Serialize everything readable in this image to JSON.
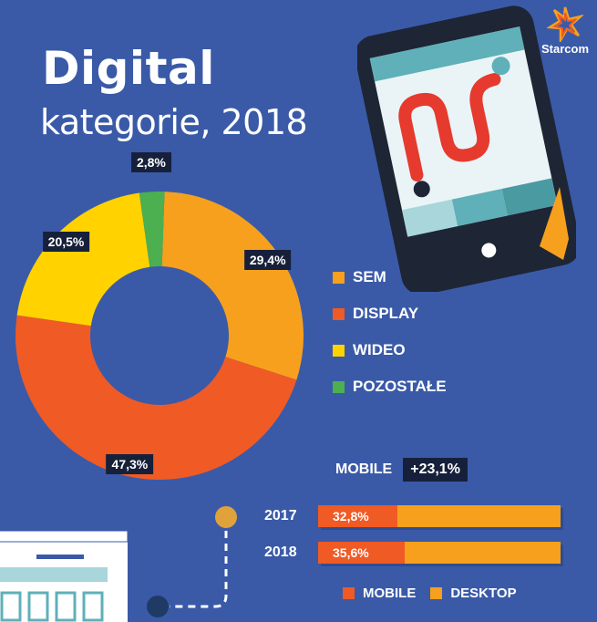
{
  "header": {
    "title": "Digital",
    "subtitle": "kategorie, 2018"
  },
  "brand": {
    "name": "Starcom"
  },
  "colors": {
    "sem": "#f7a01e",
    "display": "#f05a24",
    "wideo": "#ffd200",
    "pozostale": "#4caf50",
    "background": "#3a5aa8",
    "label_bg": "#17203a"
  },
  "chart_data": [
    {
      "type": "pie",
      "variant": "donut",
      "categories": [
        "SEM",
        "DISPLAY",
        "WIDEO",
        "POZOSTAŁE"
      ],
      "values": [
        29.4,
        47.3,
        20.5,
        2.8
      ],
      "data_labels": [
        "29,4%",
        "47,3%",
        "20,5%",
        "2,8%"
      ],
      "legend": "right"
    },
    {
      "type": "bar",
      "orientation": "horizontal",
      "stacked": true,
      "categories": [
        "2017",
        "2018"
      ],
      "series": [
        {
          "name": "MOBILE",
          "values": [
            32.8,
            35.6
          ],
          "labels": [
            "32,8%",
            "35,6%"
          ]
        },
        {
          "name": "DESKTOP",
          "values": [
            67.2,
            64.4
          ]
        }
      ],
      "annotation": {
        "label": "MOBILE",
        "value": "+23,1%"
      },
      "legend": "bottom"
    }
  ]
}
